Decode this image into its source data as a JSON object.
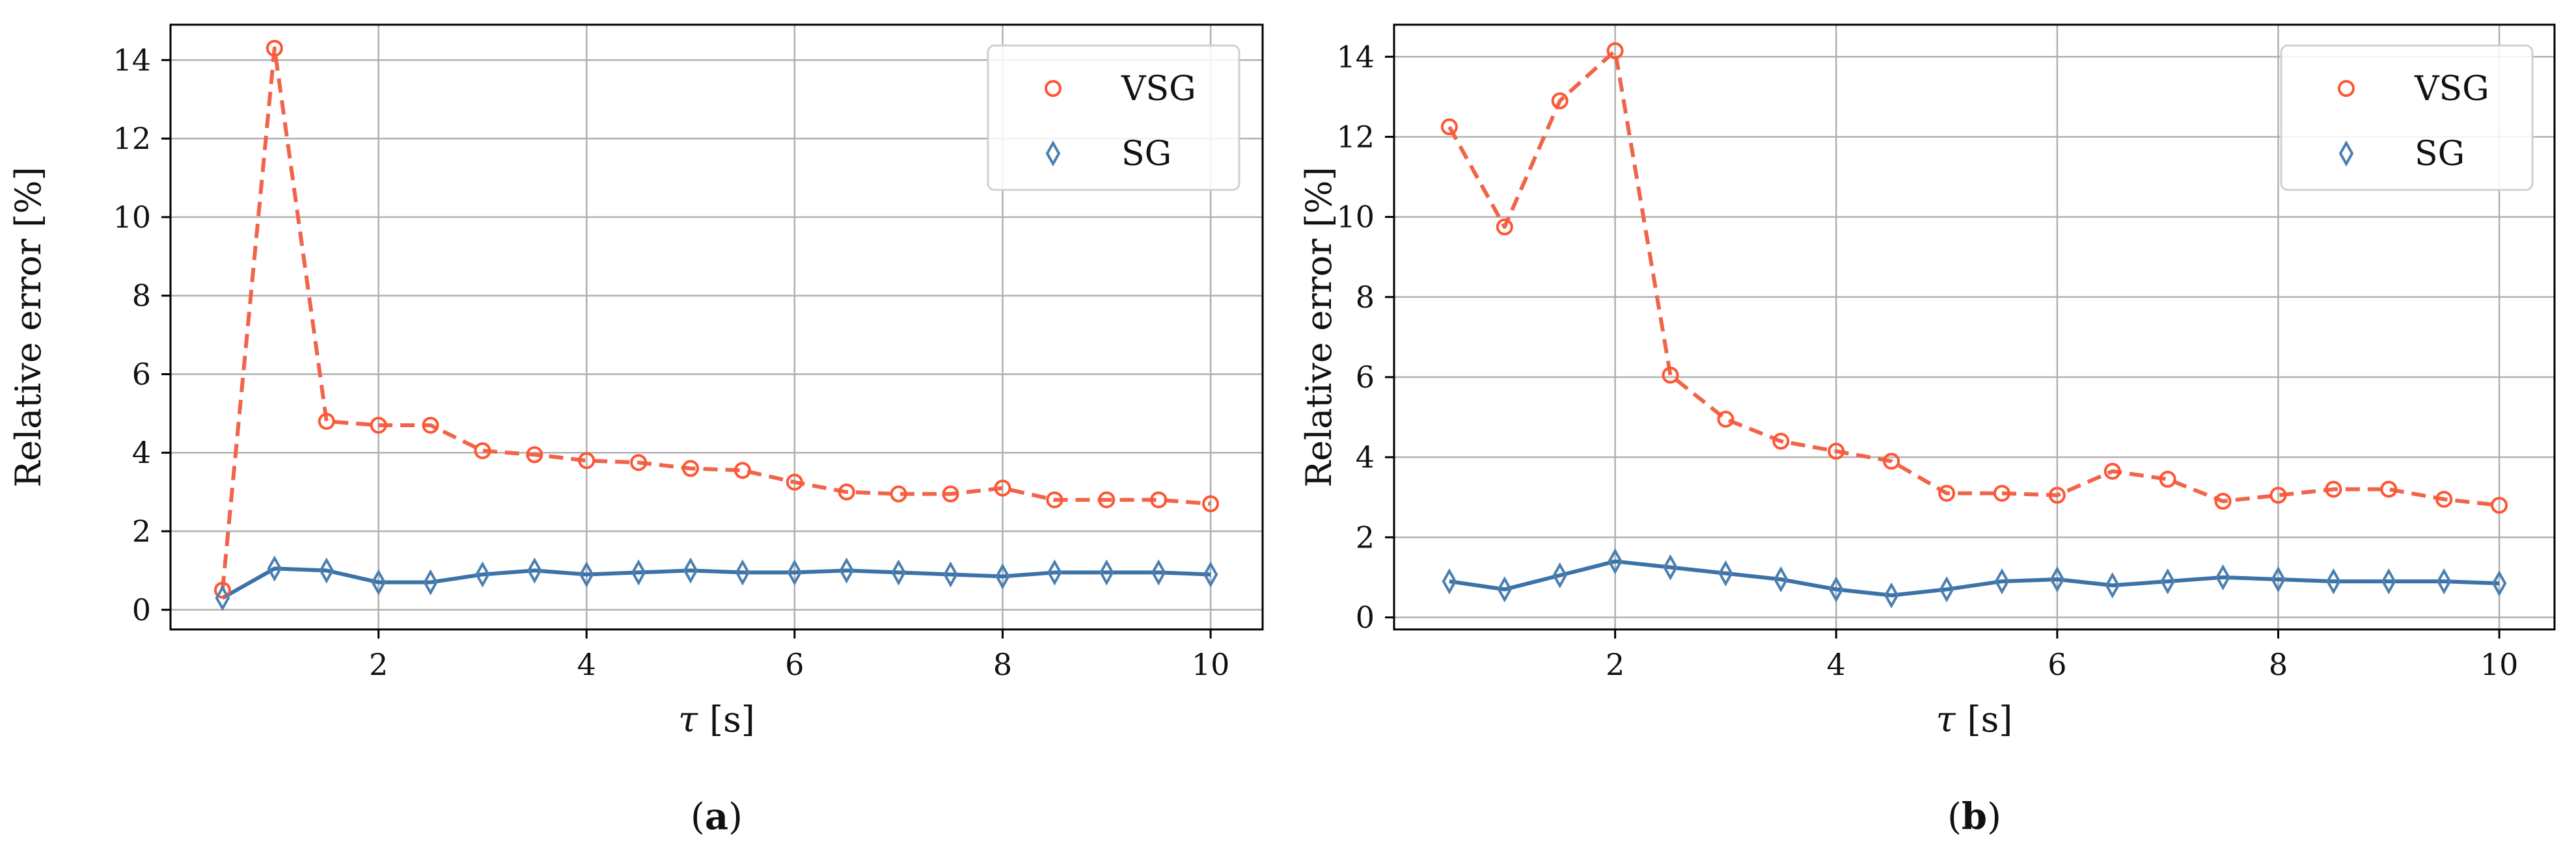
{
  "chart_data": [
    {
      "type": "line",
      "panel_label": "a",
      "panel_open": "(",
      "panel_close": ")",
      "xlabel_symbol": "τ",
      "xlabel_unit": "[s]",
      "ylabel": "Relative error [%]",
      "xlim": [
        0.0,
        10.5
      ],
      "ylim": [
        -0.5,
        14.9
      ],
      "xticks": [
        2,
        4,
        6,
        8,
        10
      ],
      "yticks": [
        0,
        2,
        4,
        6,
        8,
        10,
        12,
        14
      ],
      "grid": true,
      "legend_position": "top-right",
      "x": [
        0.5,
        1.0,
        1.5,
        2.0,
        2.5,
        3.0,
        3.5,
        4.0,
        4.5,
        5.0,
        5.5,
        6.0,
        6.5,
        7.0,
        7.5,
        8.0,
        8.5,
        9.0,
        9.5,
        10.0
      ],
      "series": [
        {
          "name": "VSG",
          "color": "#ff5533",
          "line_color": "#f0654a",
          "marker": "circle",
          "linestyle": "dashed",
          "values": [
            0.5,
            14.3,
            4.8,
            4.7,
            4.7,
            4.05,
            3.95,
            3.8,
            3.75,
            3.6,
            3.55,
            3.25,
            3.0,
            2.95,
            2.95,
            3.1,
            2.8,
            2.8,
            2.8,
            2.7
          ]
        },
        {
          "name": "SG",
          "color": "#4a7fb0",
          "line_color": "#3b72a8",
          "marker": "diamond",
          "linestyle": "solid",
          "values": [
            0.3,
            1.05,
            1.0,
            0.7,
            0.7,
            0.9,
            1.0,
            0.9,
            0.95,
            1.0,
            0.95,
            0.95,
            1.0,
            0.95,
            0.9,
            0.85,
            0.95,
            0.95,
            0.95,
            0.9
          ]
        }
      ]
    },
    {
      "type": "line",
      "panel_label": "b",
      "panel_open": "(",
      "panel_close": ")",
      "xlabel_symbol": "τ",
      "xlabel_unit": "[s]",
      "ylabel": "Relative error [%]",
      "xlim": [
        0.0,
        10.5
      ],
      "ylim": [
        -0.3,
        14.8
      ],
      "xticks": [
        2,
        4,
        6,
        8,
        10
      ],
      "yticks": [
        0,
        2,
        4,
        6,
        8,
        10,
        12,
        14
      ],
      "grid": true,
      "legend_position": "top-right",
      "x": [
        0.5,
        1.0,
        1.5,
        2.0,
        2.5,
        3.0,
        3.5,
        4.0,
        4.5,
        5.0,
        5.5,
        6.0,
        6.5,
        7.0,
        7.5,
        8.0,
        8.5,
        9.0,
        9.5,
        10.0
      ],
      "series": [
        {
          "name": "VSG",
          "color": "#ff5533",
          "line_color": "#f0654a",
          "marker": "circle",
          "linestyle": "dashed",
          "values": [
            12.25,
            9.75,
            12.9,
            14.15,
            6.05,
            4.95,
            4.4,
            4.15,
            3.9,
            3.1,
            3.1,
            3.05,
            3.65,
            3.45,
            2.9,
            3.05,
            3.2,
            3.2,
            2.95,
            2.8
          ]
        },
        {
          "name": "SG",
          "color": "#4a7fb0",
          "line_color": "#3b72a8",
          "marker": "diamond",
          "linestyle": "solid",
          "values": [
            0.9,
            0.7,
            1.05,
            1.4,
            1.25,
            1.1,
            0.95,
            0.7,
            0.55,
            0.7,
            0.9,
            0.95,
            0.8,
            0.9,
            1.0,
            0.95,
            0.9,
            0.9,
            0.9,
            0.85
          ]
        }
      ]
    }
  ]
}
